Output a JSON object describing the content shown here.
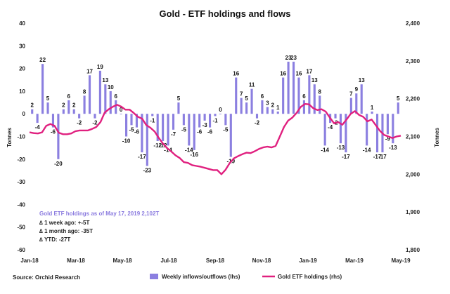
{
  "chart_data": {
    "type": "bar",
    "title": "Gold - ETF holdings and flows",
    "ylabel_left": "Tonnes",
    "ylabel_right": "Tonnes",
    "ylim_left": [
      -60,
      40
    ],
    "ylim_right": [
      1800,
      2400
    ],
    "yticks_left": [
      "40",
      "30",
      "20",
      "10",
      "0",
      "-10",
      "-20",
      "-30",
      "-40",
      "-50",
      "-60"
    ],
    "yticks_right": [
      "2,400",
      "2,300",
      "2,200",
      "2,100",
      "2,000",
      "1,900",
      "1,800"
    ],
    "xtick_labels": [
      "Jan-18",
      "Mar-18",
      "May-18",
      "Jul-18",
      "Sep-18",
      "Nov-18",
      "Jan-19",
      "Mar-19",
      "May-19"
    ],
    "bar_color": "#8b7fe0",
    "line_color": "#e0207f",
    "series": [
      {
        "name": "Weekly inflows/outflows (lhs)",
        "values": [
          2,
          -4,
          22,
          5,
          -6,
          -20,
          2,
          6,
          2,
          -2,
          8,
          17,
          -2,
          19,
          13,
          10,
          6,
          0,
          -10,
          -5,
          -6,
          -17,
          -23,
          -1,
          -12,
          -12,
          -14,
          -7,
          5,
          -5,
          -14,
          -16,
          -6,
          -3,
          -6,
          -1,
          0,
          -5,
          -19,
          16,
          7,
          5,
          11,
          -2,
          6,
          3,
          2,
          1,
          16,
          23,
          23,
          16,
          6,
          17,
          13,
          8,
          -14,
          -4,
          -2,
          -13,
          -17,
          7,
          9,
          13,
          -14,
          1,
          -17,
          -17,
          -9,
          -13,
          5
        ],
        "labels": [
          "2",
          "-4",
          "22",
          "5",
          "-6",
          "-20",
          "2",
          "6",
          "2",
          "-2",
          "8",
          "17",
          "-2",
          "19",
          "13",
          "10",
          "6",
          "0",
          "-10",
          "-5",
          "-6",
          "-17",
          "-23",
          "-1",
          "-12",
          "-12",
          "-14",
          "-7",
          "5",
          "-5",
          "-14",
          "-16",
          "-6",
          "-3",
          "-6",
          "-1",
          "0",
          "-5",
          "-19",
          "16",
          "7",
          "5",
          "11",
          "-2",
          "6",
          "3",
          "2",
          "1",
          "16",
          "23",
          "23",
          "16",
          "6",
          "17",
          "13",
          "8",
          "-14",
          "-4",
          "-2",
          "-13",
          "-17",
          "7",
          "9",
          "13",
          "-14",
          "1",
          "-17",
          "-17",
          "-9",
          "-13",
          "5"
        ]
      },
      {
        "name": "Gold ETF holdings (rhs)",
        "type": "line",
        "values": [
          2111,
          2109,
          2108,
          2111,
          2128,
          2133,
          2128,
          2110,
          2106,
          2106,
          2108,
          2114,
          2116,
          2116,
          2116,
          2120,
          2125,
          2138,
          2163,
          2172,
          2179,
          2184,
          2179,
          2171,
          2171,
          2162,
          2152,
          2147,
          2130,
          2123,
          2113,
          2096,
          2081,
          2069,
          2060,
          2050,
          2043,
          2032,
          2030,
          2024,
          2022,
          2020,
          2017,
          2014,
          2011,
          2011,
          2000,
          2012,
          2030,
          2042,
          2048,
          2053,
          2057,
          2056,
          2061,
          2067,
          2071,
          2073,
          2071,
          2075,
          2100,
          2125,
          2142,
          2150,
          2162,
          2178,
          2186,
          2185,
          2175,
          2170,
          2172,
          2166,
          2150,
          2135,
          2138,
          2131,
          2145,
          2160,
          2167,
          2157,
          2152,
          2140,
          2145,
          2130,
          2115,
          2104,
          2100,
          2096,
          2100,
          2102
        ]
      }
    ]
  },
  "annotation": {
    "heading": "Gold ETF holdings as of May 17, 2019 2,102T",
    "lines": [
      "∆ 1 week ago: +-5T",
      "∆ 1 month ago: -35T",
      "∆ YTD: -27T"
    ]
  },
  "source": "Source: Orchid Research",
  "legend": {
    "bars": "Weekly inflows/outflows (lhs)",
    "line": "Gold ETF holdings (rhs)"
  }
}
